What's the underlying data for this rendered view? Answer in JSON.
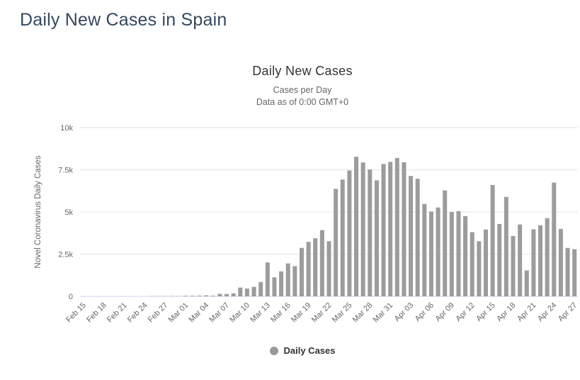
{
  "page": {
    "title": "Daily New Cases in Spain"
  },
  "chart": {
    "title": "Daily New Cases",
    "subtitle_lines": [
      "Cases per Day",
      "Data as of 0:00 GMT+0"
    ],
    "legend": {
      "label": "Daily Cases",
      "marker_color": "#999999"
    }
  },
  "chart_data": {
    "type": "bar",
    "title": "Daily New Cases",
    "subtitle": "Cases per Day — Data as of 0:00 GMT+0",
    "ylabel": "Novel Coronavirus Daily Cases",
    "xlabel": "",
    "ylim": [
      0,
      10000
    ],
    "ytick_values": [
      0,
      2500,
      5000,
      7500,
      10000
    ],
    "ytick_labels": [
      "0",
      "2.5k",
      "5k",
      "7.5k",
      "10k"
    ],
    "xtick_step": 3,
    "grid": true,
    "legend_position": "bottom",
    "series_name": "Daily Cases",
    "bar_color": "#9c9c9c",
    "grid_color": "#e6e6e6",
    "axis_line_color": "#ccd6eb",
    "tick_label_color": "#666666",
    "categories": [
      "Feb 15",
      "Feb 16",
      "Feb 17",
      "Feb 18",
      "Feb 19",
      "Feb 20",
      "Feb 21",
      "Feb 22",
      "Feb 23",
      "Feb 24",
      "Feb 25",
      "Feb 26",
      "Feb 27",
      "Feb 28",
      "Feb 29",
      "Mar 01",
      "Mar 02",
      "Mar 03",
      "Mar 04",
      "Mar 05",
      "Mar 06",
      "Mar 07",
      "Mar 08",
      "Mar 09",
      "Mar 10",
      "Mar 11",
      "Mar 12",
      "Mar 13",
      "Mar 14",
      "Mar 15",
      "Mar 16",
      "Mar 17",
      "Mar 18",
      "Mar 19",
      "Mar 20",
      "Mar 21",
      "Mar 22",
      "Mar 23",
      "Mar 24",
      "Mar 25",
      "Mar 26",
      "Mar 27",
      "Mar 28",
      "Mar 29",
      "Mar 30",
      "Mar 31",
      "Apr 01",
      "Apr 02",
      "Apr 03",
      "Apr 04",
      "Apr 05",
      "Apr 06",
      "Apr 07",
      "Apr 08",
      "Apr 09",
      "Apr 10",
      "Apr 11",
      "Apr 12",
      "Apr 13",
      "Apr 14",
      "Apr 15",
      "Apr 16",
      "Apr 17",
      "Apr 18",
      "Apr 19",
      "Apr 20",
      "Apr 21",
      "Apr 22",
      "Apr 23",
      "Apr 24",
      "Apr 25",
      "Apr 26",
      "Apr 27"
    ],
    "values": [
      0,
      0,
      0,
      0,
      0,
      0,
      0,
      0,
      0,
      0,
      4,
      9,
      12,
      17,
      13,
      35,
      36,
      45,
      57,
      40,
      150,
      140,
      175,
      520,
      460,
      560,
      850,
      2010,
      1125,
      1480,
      1950,
      1790,
      2870,
      3230,
      3440,
      3925,
      3270,
      6368,
      6922,
      7457,
      8271,
      7933,
      7516,
      6875,
      7846,
      7967,
      8195,
      7947,
      7134,
      6969,
      5478,
      5029,
      5267,
      6278,
      5002,
      5051,
      4754,
      3804,
      3268,
      3961,
      6599,
      4289,
      5891,
      3577,
      4258,
      1536,
      3968,
      4211,
      4635,
      6740,
      3995,
      2870,
      2793
    ]
  }
}
